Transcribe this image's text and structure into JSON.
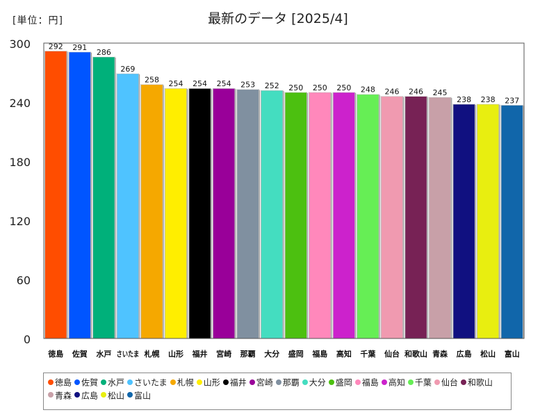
{
  "unit_label": "[単位：円]",
  "chart_data": {
    "type": "bar",
    "title": "最新のデータ [2025/4]",
    "categories": [
      "徳島",
      "佐賀",
      "水戸",
      "さいたま",
      "札幌",
      "山形",
      "福井",
      "宮崎",
      "那覇",
      "大分",
      "盛岡",
      "福島",
      "高知",
      "千葉",
      "仙台",
      "和歌山",
      "青森",
      "広島",
      "松山",
      "富山"
    ],
    "tick_labels": [
      "徳島",
      "佐賀",
      "水戸",
      "さいたま",
      "札幌",
      "山形",
      "福井",
      "宮崎",
      "那覇",
      "大分",
      "盛岡",
      "福島",
      "高知",
      "千葉",
      "仙台",
      "和歌山",
      "青森",
      "広島",
      "松山",
      "富山"
    ],
    "values": [
      292,
      291,
      286,
      269,
      258,
      254,
      254,
      254,
      253,
      252,
      250,
      250,
      250,
      248,
      246,
      246,
      245,
      238,
      238,
      237
    ],
    "colors": [
      "#ff4d00",
      "#0055ff",
      "#00b07a",
      "#4fc3ff",
      "#f5a800",
      "#ffee00",
      "#000000",
      "#990099",
      "#8090a0",
      "#44ddc0",
      "#4cc010",
      "#ff88bb",
      "#cc22cc",
      "#66ee55",
      "#f09ab0",
      "#772255",
      "#c8a0a8",
      "#101080",
      "#e8ee10",
      "#1166aa"
    ],
    "ylim": [
      0,
      300
    ],
    "yticks": [
      0,
      60,
      120,
      180,
      240,
      300
    ],
    "xlabel": "",
    "ylabel": "",
    "grid": false,
    "legend_position": "bottom"
  }
}
